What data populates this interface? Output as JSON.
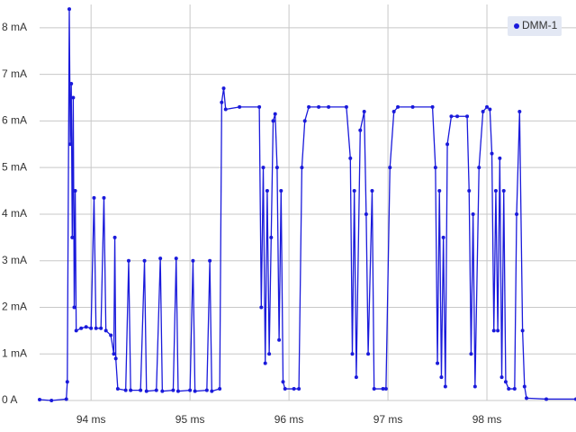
{
  "chart_data": {
    "type": "line",
    "x": [
      93.48,
      93.6,
      93.75,
      93.76,
      93.78,
      93.79,
      93.8,
      93.81,
      93.82,
      93.83,
      93.84,
      93.85,
      93.9,
      93.95,
      94.0,
      94.03,
      94.05,
      94.1,
      94.13,
      94.15,
      94.2,
      94.23,
      94.24,
      94.25,
      94.27,
      94.35,
      94.38,
      94.4,
      94.5,
      94.54,
      94.56,
      94.66,
      94.7,
      94.72,
      94.83,
      94.86,
      94.88,
      95.0,
      95.03,
      95.05,
      95.17,
      95.2,
      95.22,
      95.3,
      95.32,
      95.34,
      95.36,
      95.5,
      95.7,
      95.72,
      95.74,
      95.76,
      95.78,
      95.8,
      95.82,
      95.84,
      95.86,
      95.88,
      95.9,
      95.92,
      95.94,
      95.96,
      96.05,
      96.1,
      96.13,
      96.16,
      96.2,
      96.3,
      96.4,
      96.58,
      96.62,
      96.64,
      96.66,
      96.68,
      96.72,
      96.76,
      96.78,
      96.8,
      96.84,
      96.86,
      96.95,
      96.98,
      97.02,
      97.06,
      97.1,
      97.25,
      97.45,
      97.48,
      97.5,
      97.52,
      97.54,
      97.56,
      97.58,
      97.6,
      97.64,
      97.7,
      97.8,
      97.82,
      97.84,
      97.86,
      97.88,
      97.92,
      97.96,
      98.0,
      98.03,
      98.05,
      98.07,
      98.09,
      98.11,
      98.13,
      98.15,
      98.17,
      98.19,
      98.22,
      98.28,
      98.3,
      98.33,
      98.36,
      98.38,
      98.4,
      98.6,
      98.9
    ],
    "series": [
      {
        "name": "DMM-1",
        "color": "#1a1adb",
        "values": [
          0.02,
          0.0,
          0.03,
          0.4,
          8.4,
          5.5,
          6.8,
          3.5,
          6.5,
          2.0,
          4.5,
          1.5,
          1.55,
          1.58,
          1.55,
          4.35,
          1.55,
          1.55,
          4.35,
          1.5,
          1.4,
          1.0,
          3.5,
          0.9,
          0.25,
          0.22,
          3.0,
          0.22,
          0.22,
          3.0,
          0.2,
          0.22,
          3.05,
          0.2,
          0.22,
          3.05,
          0.2,
          0.22,
          3.0,
          0.2,
          0.22,
          3.0,
          0.2,
          0.25,
          6.4,
          6.7,
          6.25,
          6.3,
          6.3,
          2.0,
          5.0,
          0.8,
          4.5,
          1.0,
          3.5,
          6.0,
          6.15,
          5.0,
          1.3,
          4.5,
          0.4,
          0.25,
          0.25,
          0.25,
          5.0,
          6.0,
          6.3,
          6.3,
          6.3,
          6.3,
          5.2,
          1.0,
          4.5,
          0.5,
          5.8,
          6.2,
          4.0,
          1.0,
          4.5,
          0.25,
          0.25,
          0.25,
          5.0,
          6.2,
          6.3,
          6.3,
          6.3,
          5.0,
          0.8,
          4.5,
          0.5,
          3.5,
          0.3,
          5.5,
          6.1,
          6.1,
          6.1,
          4.5,
          1.0,
          4.0,
          0.3,
          5.0,
          6.2,
          6.3,
          6.25,
          5.3,
          1.5,
          4.5,
          1.5,
          5.2,
          0.5,
          4.5,
          0.4,
          0.25,
          0.25,
          4.0,
          6.2,
          1.5,
          0.3,
          0.05,
          0.03,
          0.03
        ]
      }
    ],
    "xlim": [
      93.48,
      98.9
    ],
    "ylim": [
      0,
      8.5
    ],
    "xticks": [
      {
        "value": 94,
        "label": "94 ms"
      },
      {
        "value": 95,
        "label": "95 ms"
      },
      {
        "value": 96,
        "label": "96 ms"
      },
      {
        "value": 97,
        "label": "97 ms"
      },
      {
        "value": 98,
        "label": "98 ms"
      }
    ],
    "yticks": [
      {
        "value": 0,
        "label": "0 A"
      },
      {
        "value": 1,
        "label": "1 mA"
      },
      {
        "value": 2,
        "label": "2 mA"
      },
      {
        "value": 3,
        "label": "3 mA"
      },
      {
        "value": 4,
        "label": "4 mA"
      },
      {
        "value": 5,
        "label": "5 mA"
      },
      {
        "value": 6,
        "label": "6 mA"
      },
      {
        "value": 7,
        "label": "7 mA"
      },
      {
        "value": 8,
        "label": "8 mA"
      }
    ],
    "grid": true,
    "legend": "top-right"
  }
}
